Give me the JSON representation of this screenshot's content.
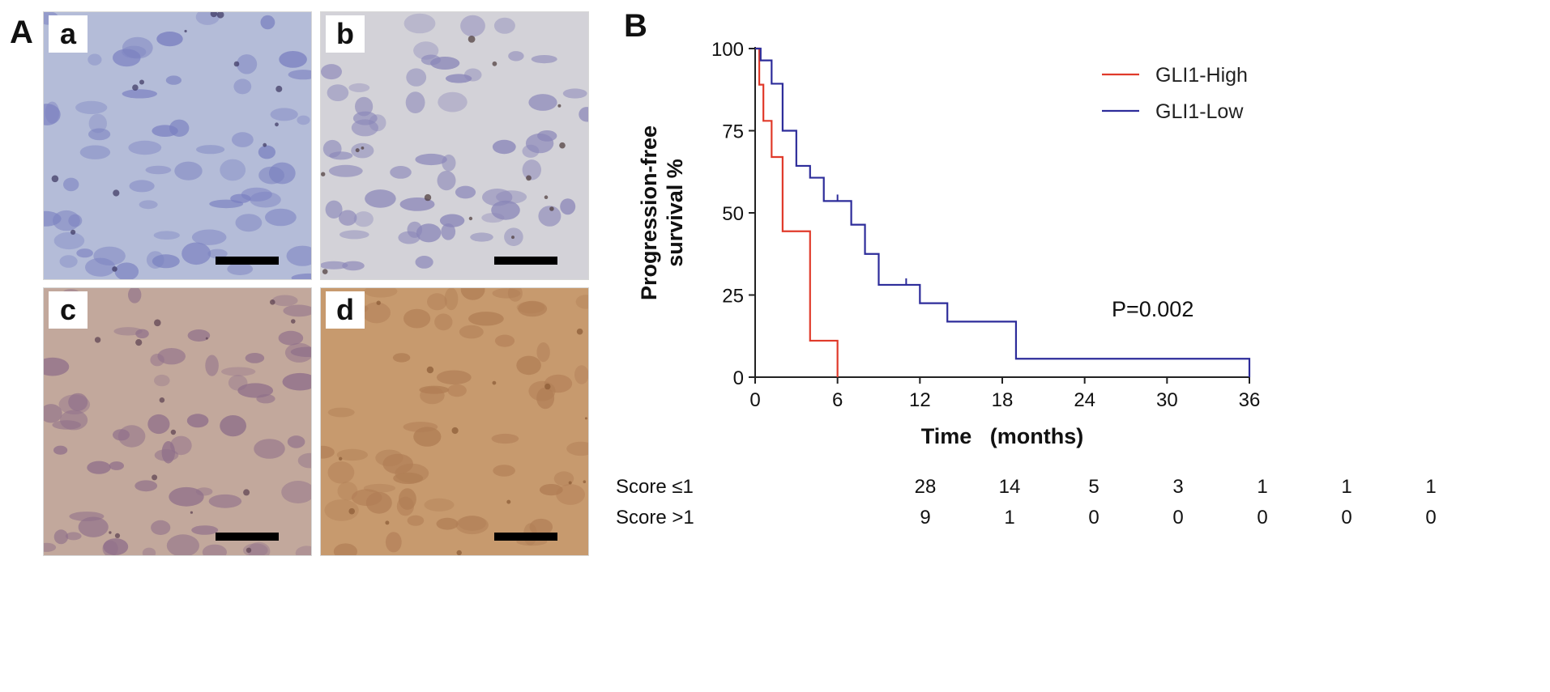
{
  "figure": {
    "panel_a_letter": "A",
    "panel_b_letter": "B",
    "micrographs": [
      {
        "label": "a",
        "stain": "#b4bcd8",
        "nucleus": "#7a80c0",
        "accent": "#3a3560"
      },
      {
        "label": "b",
        "stain": "#d3d2d8",
        "nucleus": "#8a86b8",
        "accent": "#4a3838"
      },
      {
        "label": "c",
        "stain": "#c2a89c",
        "nucleus": "#8f6f8a",
        "accent": "#5a3f50"
      },
      {
        "label": "d",
        "stain": "#c79a6e",
        "nucleus": "#b07d55",
        "accent": "#8a5a35"
      }
    ]
  },
  "chart_data": {
    "type": "line",
    "subtype": "kaplan-meier step",
    "ylabel_line1": "Progression-free",
    "ylabel_line2": "survival %",
    "xlabel": "Time   (months)",
    "xlim": [
      0,
      36
    ],
    "ylim": [
      0,
      100
    ],
    "xticks": [
      0,
      6,
      12,
      18,
      24,
      30,
      36
    ],
    "yticks": [
      0,
      25,
      50,
      75,
      100
    ],
    "annotation": "P=0.002",
    "legend_position": "top-right",
    "series": [
      {
        "name": "GLI1-High",
        "color": "#e03a2a",
        "steps": [
          [
            0,
            100
          ],
          [
            0.3,
            89
          ],
          [
            0.6,
            78
          ],
          [
            1.2,
            67
          ],
          [
            2.0,
            44.4
          ],
          [
            4.0,
            11.1
          ],
          [
            6.0,
            0
          ]
        ],
        "censors": []
      },
      {
        "name": "GLI1-Low",
        "color": "#2d2c9a",
        "steps": [
          [
            0,
            100
          ],
          [
            0.4,
            96.4
          ],
          [
            1.2,
            89.3
          ],
          [
            2.0,
            75
          ],
          [
            3.0,
            64.3
          ],
          [
            4.0,
            60.7
          ],
          [
            5.0,
            53.6
          ],
          [
            7.0,
            46.4
          ],
          [
            8.0,
            37.5
          ],
          [
            9.0,
            28.1
          ],
          [
            12.0,
            22.5
          ],
          [
            14.0,
            16.9
          ],
          [
            19.0,
            5.6
          ],
          [
            36.0,
            0
          ]
        ],
        "censors": [
          [
            6.0,
            53.6
          ],
          [
            11.0,
            28.1
          ]
        ]
      }
    ]
  },
  "risk_table": {
    "rows": [
      {
        "label": "Score ≤1",
        "values": [
          "28",
          "14",
          "5",
          "3",
          "1",
          "1",
          "1"
        ]
      },
      {
        "label": "Score >1",
        "values": [
          "9",
          "1",
          "0",
          "0",
          "0",
          "0",
          "0"
        ]
      }
    ]
  }
}
